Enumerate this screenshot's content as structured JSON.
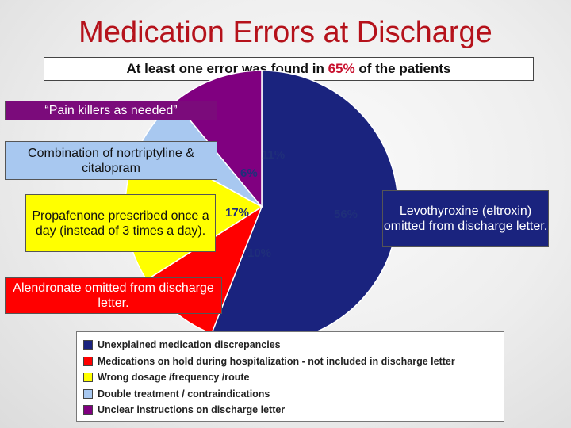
{
  "title": "Medication Errors at Discharge",
  "subtitle": {
    "before": "At least one error was found in ",
    "highlight": "65%",
    "after": " of the patients"
  },
  "colors": {
    "title": "#b5121b",
    "highlight": "#c8102e",
    "navy": "#1a237e",
    "red": "#ff0000",
    "yellow": "#ffff00",
    "lightblue": "#a8c8f0",
    "purple": "#800080"
  },
  "callouts": {
    "pain": "“Pain killers as needed”",
    "combination": "Combination of nortriptyline & citalopram",
    "propafenone": "Propafenone prescribed once a day (instead of 3 times a day).",
    "alendronate": "Alendronate omitted from discharge letter.",
    "levothyroxine": "Levothyroxine (eltroxin) omitted from discharge letter."
  },
  "chart_data": {
    "type": "pie",
    "slices": [
      {
        "label": "Unexplained medication discrepancies",
        "value": 56,
        "value_label": "56%",
        "color": "#1a237e"
      },
      {
        "label": "Medications on hold during hospitalization - not included in discharge letter",
        "value": 10,
        "value_label": "10%",
        "color": "#ff0000"
      },
      {
        "label": "Wrong dosage /frequency /route",
        "value": 17,
        "value_label": "17%",
        "color": "#ffff00"
      },
      {
        "label": "Double treatment / contraindications",
        "value": 6,
        "value_label": "6%",
        "color": "#a8c8f0"
      },
      {
        "label": "Unclear instructions on discharge letter",
        "value": 11,
        "value_label": "11%",
        "color": "#800080"
      }
    ],
    "legend_position": "bottom"
  }
}
